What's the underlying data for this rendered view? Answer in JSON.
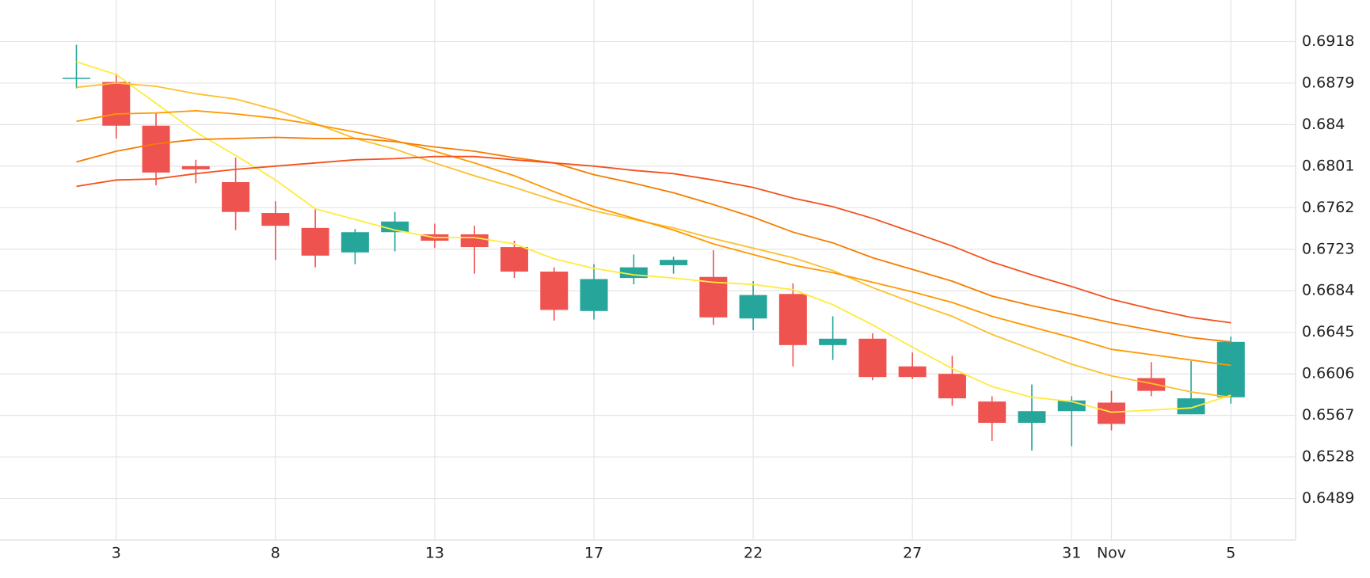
{
  "chart_data": {
    "type": "candlestick",
    "categories": [
      null,
      "3",
      null,
      null,
      null,
      "8",
      null,
      null,
      null,
      "13",
      null,
      null,
      null,
      "17",
      null,
      null,
      null,
      "22",
      null,
      null,
      null,
      "27",
      null,
      null,
      null,
      "31",
      "Nov",
      null,
      null,
      "5"
    ],
    "open": [
      0.6883,
      0.688,
      0.6839,
      0.6801,
      0.6786,
      0.6757,
      0.6743,
      0.672,
      0.6739,
      0.6737,
      0.6737,
      0.6725,
      0.6702,
      0.6665,
      0.6696,
      0.6708,
      0.6697,
      0.6658,
      0.6681,
      0.6633,
      0.6639,
      0.6613,
      0.6606,
      0.658,
      0.656,
      0.6571,
      0.6579,
      0.6602,
      0.6568,
      0.6584
    ],
    "high": [
      0.6915,
      0.6888,
      0.6851,
      0.6807,
      0.6809,
      0.6768,
      0.6761,
      0.6742,
      0.6758,
      0.6747,
      0.6745,
      0.6731,
      0.6706,
      0.6709,
      0.6718,
      0.6716,
      0.6722,
      0.6693,
      0.6691,
      0.666,
      0.6644,
      0.6626,
      0.6623,
      0.6585,
      0.6596,
      0.6585,
      0.659,
      0.6617,
      0.6618,
      0.6641
    ],
    "low": [
      0.6874,
      0.6827,
      0.6783,
      0.6785,
      0.6741,
      0.6713,
      0.6706,
      0.6709,
      0.6721,
      0.6724,
      0.67,
      0.6696,
      0.6656,
      0.6657,
      0.669,
      0.67,
      0.6652,
      0.6647,
      0.6613,
      0.6619,
      0.66,
      0.6601,
      0.6576,
      0.6543,
      0.6534,
      0.6538,
      0.6553,
      0.6585,
      0.6568,
      0.6578
    ],
    "close": [
      0.6884,
      0.6839,
      0.6795,
      0.6798,
      0.6758,
      0.6745,
      0.6717,
      0.6739,
      0.6749,
      0.6731,
      0.6725,
      0.6702,
      0.6666,
      0.6695,
      0.6706,
      0.6713,
      0.6659,
      0.668,
      0.6633,
      0.6639,
      0.6603,
      0.6603,
      0.6583,
      0.656,
      0.6571,
      0.6581,
      0.6559,
      0.659,
      0.6583,
      0.6636
    ],
    "up_color": "#26a69a",
    "down_color": "#ef5350",
    "lines": [
      {
        "color": "#ffeb3b",
        "values": [
          0.6899,
          0.6887,
          0.686,
          0.6833,
          0.6811,
          0.6788,
          0.6761,
          0.6751,
          0.6741,
          0.6734,
          0.6734,
          0.6728,
          0.6714,
          0.6705,
          0.6699,
          0.6696,
          0.6692,
          0.669,
          0.6685,
          0.6671,
          0.6652,
          0.6631,
          0.6611,
          0.6594,
          0.6584,
          0.658,
          0.657,
          0.6572,
          0.6574,
          0.6586
        ]
      },
      {
        "color": "#fbc02d",
        "values": [
          0.6875,
          0.6879,
          0.6876,
          0.6869,
          0.6864,
          0.6854,
          0.6841,
          0.6827,
          0.6817,
          0.6804,
          0.6792,
          0.6781,
          0.6769,
          0.6759,
          0.6751,
          0.6743,
          0.6733,
          0.6724,
          0.6715,
          0.6703,
          0.6687,
          0.6673,
          0.666,
          0.6643,
          0.6629,
          0.6615,
          0.6604,
          0.6597,
          0.6589,
          0.6584
        ]
      },
      {
        "color": "#ff9800",
        "values": [
          0.6843,
          0.685,
          0.6851,
          0.6853,
          0.685,
          0.6846,
          0.684,
          0.6833,
          0.6825,
          0.6815,
          0.6804,
          0.6792,
          0.6777,
          0.6763,
          0.6752,
          0.6741,
          0.6728,
          0.6718,
          0.6708,
          0.6701,
          0.6692,
          0.6683,
          0.6673,
          0.666,
          0.665,
          0.664,
          0.6629,
          0.6624,
          0.6619,
          0.6614
        ]
      },
      {
        "color": "#f57c00",
        "values": [
          0.6805,
          0.6815,
          0.6822,
          0.6826,
          0.6827,
          0.6828,
          0.6827,
          0.6827,
          0.6824,
          0.6819,
          0.6815,
          0.6809,
          0.6804,
          0.6793,
          0.6785,
          0.6776,
          0.6765,
          0.6753,
          0.6739,
          0.6729,
          0.6715,
          0.6704,
          0.6693,
          0.6679,
          0.667,
          0.6662,
          0.6654,
          0.6647,
          0.664,
          0.6636
        ]
      },
      {
        "color": "#f4511e",
        "values": [
          0.6782,
          0.6788,
          0.6789,
          0.6794,
          0.6798,
          0.6801,
          0.6804,
          0.6807,
          0.6808,
          0.681,
          0.681,
          0.6807,
          0.6804,
          0.6801,
          0.6797,
          0.6794,
          0.6788,
          0.6781,
          0.6771,
          0.6763,
          0.6752,
          0.6739,
          0.6726,
          0.6711,
          0.6699,
          0.6688,
          0.6676,
          0.6667,
          0.6659,
          0.6654
        ]
      }
    ],
    "ylim": [
      0.645,
      0.6957
    ],
    "yticks": [
      0.6489,
      0.6528,
      0.6567,
      0.6606,
      0.6645,
      0.6684,
      0.6723,
      0.6762,
      0.6801,
      0.684,
      0.6879,
      0.6918
    ],
    "grid": true
  }
}
